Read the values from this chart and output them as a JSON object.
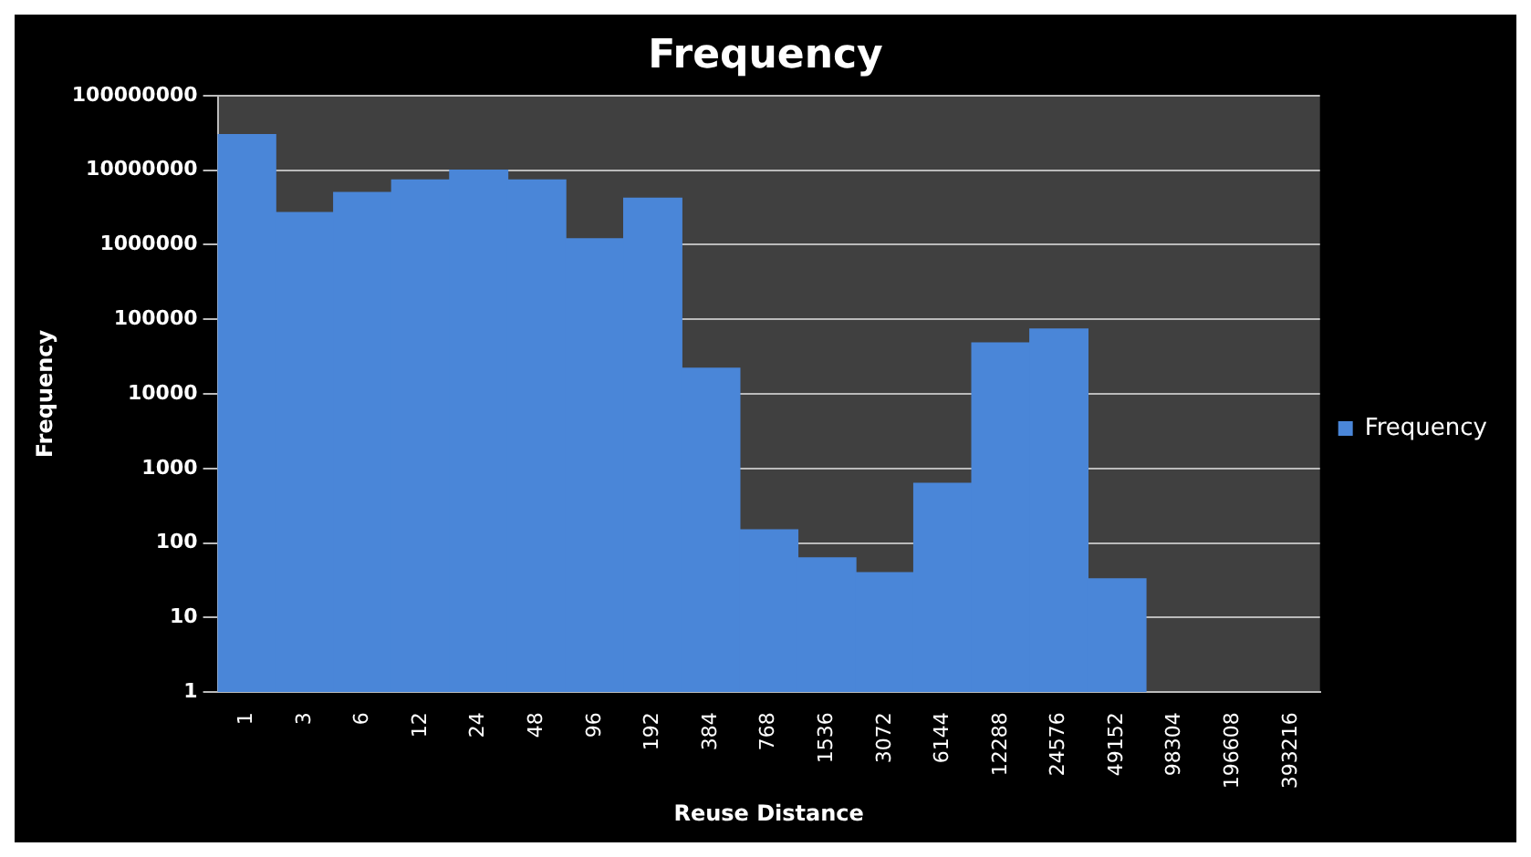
{
  "chart_data": {
    "type": "bar",
    "title": "Frequency",
    "xlabel": "Reuse Distance",
    "ylabel": "Frequency",
    "categories": [
      "1",
      "3",
      "6",
      "12",
      "24",
      "48",
      "96",
      "192",
      "384",
      "768",
      "1536",
      "3072",
      "6144",
      "12288",
      "24576",
      "49152",
      "98304",
      "196608",
      "393216"
    ],
    "series": [
      {
        "name": "Frequency",
        "color": "#4a86d8",
        "values": [
          30000000,
          2700000,
          5000000,
          7400000,
          10000000,
          7400000,
          1200000,
          4200000,
          22000,
          150,
          63,
          40,
          630,
          48000,
          74000,
          33,
          null,
          null,
          null
        ]
      }
    ],
    "log": "y",
    "ylim": [
      1,
      100000000
    ],
    "yticks": [
      1,
      10,
      100,
      1000,
      10000,
      100000,
      1000000,
      10000000,
      100000000
    ],
    "grid": "y",
    "legend": "right"
  }
}
